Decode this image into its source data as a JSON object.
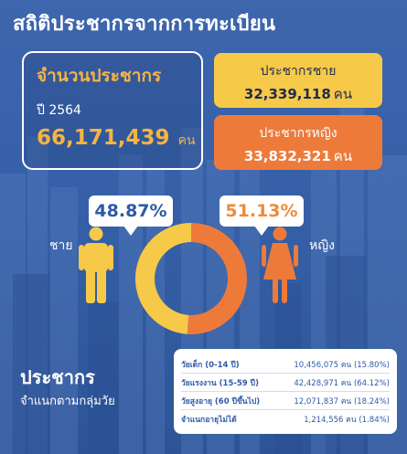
{
  "title": "สถิติประชากรจากการทะเบียน",
  "total": {
    "label": "จำนวนประชากร",
    "year": "ปี 2564",
    "value": "66,171,439",
    "unit": "คน"
  },
  "male": {
    "label": "ประชากรชาย",
    "value": "32,339,118",
    "unit": "คน",
    "percent_label": "48.87%",
    "gender_label": "ชาย"
  },
  "female": {
    "label": "ประชากรหญิง",
    "value": "33,832,321",
    "unit": "คน",
    "percent_label": "51.13%",
    "gender_label": "หญิง"
  },
  "age": {
    "title": "ประชากร",
    "subtitle": "จำแนกตามกลุ่มวัย",
    "rows": [
      {
        "name": "วัยเด็ก (0-14 ปี)",
        "value": "10,456,075 คน (15.80%)"
      },
      {
        "name": "วัยแรงงาน (15-59 ปี)",
        "value": "42,428,971 คน (64.12%)"
      },
      {
        "name": "วัยสูงอายุ (60 ปีขึ้นไป)",
        "value": "12,071,837 คน (18.24%)"
      },
      {
        "name": "จำแนกอายุไม่ได้",
        "value": "1,214,556 คน (1.84%)"
      }
    ]
  },
  "colors": {
    "male": "#f7c948",
    "female": "#ee7a3a"
  },
  "chart_data": {
    "type": "pie",
    "categories": [
      "ชาย",
      "หญิง"
    ],
    "values": [
      48.87,
      51.13
    ],
    "unit": "%"
  }
}
